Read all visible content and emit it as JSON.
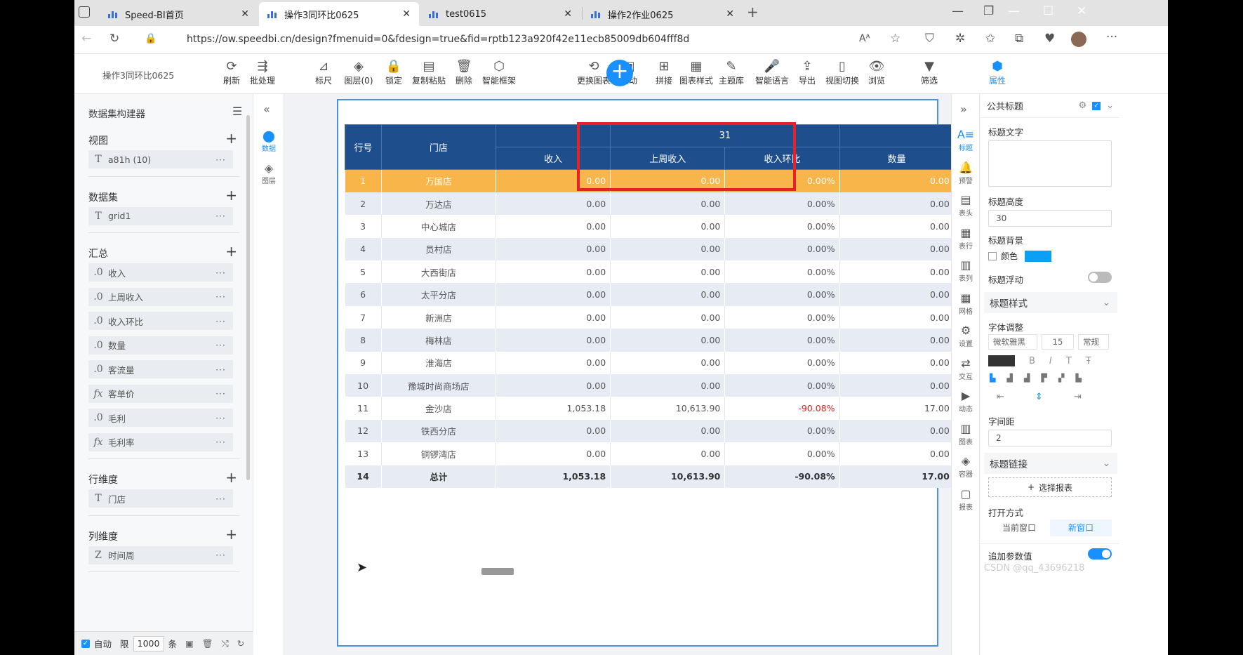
{
  "browser": {
    "tabs": [
      {
        "title": "Speed-BI首页"
      },
      {
        "title": "操作3同环比0625"
      },
      {
        "title": "test0615"
      },
      {
        "title": "操作2作业0625"
      }
    ],
    "url": "https://ow.speedbi.cn/design?fmenuid=0&fdesign=true&fid=rptb123a920f42e11ecb85009db604fff8d"
  },
  "app": {
    "report_title": "操作3同环比0625",
    "toolbar": [
      {
        "label": "刷新",
        "icon": "refresh-icon"
      },
      {
        "label": "批处理",
        "icon": "batch-icon"
      },
      {
        "label": "标尺",
        "icon": "ruler-icon"
      },
      {
        "label": "图层(0)",
        "icon": "layers-icon"
      },
      {
        "label": "锁定",
        "icon": "lock-icon"
      },
      {
        "label": "复制粘贴",
        "icon": "copy-icon"
      },
      {
        "label": "删除",
        "icon": "trash-icon"
      },
      {
        "label": "智能框架",
        "icon": "smart-frame-icon"
      },
      {
        "label": "更换图表",
        "icon": "change-chart-icon"
      },
      {
        "label": "联动",
        "icon": "link-icon"
      },
      {
        "label": "拼接",
        "icon": "splice-icon"
      },
      {
        "label": "图表样式",
        "icon": "chart-style-icon"
      },
      {
        "label": "主题库",
        "icon": "theme-icon"
      },
      {
        "label": "智能语言",
        "icon": "mic-icon"
      },
      {
        "label": "导出",
        "icon": "export-icon"
      },
      {
        "label": "视图切换",
        "icon": "view-switch-icon"
      },
      {
        "label": "浏览",
        "icon": "eye-icon"
      },
      {
        "label": "筛选",
        "icon": "filter-icon"
      },
      {
        "label": "属性",
        "icon": "property-icon"
      }
    ]
  },
  "left_panel": {
    "title": "数据集构建器",
    "sections": [
      {
        "title": "视图",
        "items": [
          {
            "type": "T",
            "name": "a81h (10)"
          }
        ]
      },
      {
        "title": "数据集",
        "items": [
          {
            "type": "T",
            "name": "grid1"
          }
        ]
      },
      {
        "title": "汇总",
        "items": [
          {
            "type": ".0",
            "name": "收入"
          },
          {
            "type": ".0",
            "name": "上周收入"
          },
          {
            "type": ".0",
            "name": "收入环比"
          },
          {
            "type": ".0",
            "name": "数量"
          },
          {
            "type": ".0",
            "name": "客流量"
          },
          {
            "type": "fx",
            "name": "客单价"
          },
          {
            "type": ".0",
            "name": "毛利"
          },
          {
            "type": "fx",
            "name": "毛利率"
          }
        ]
      },
      {
        "title": "行维度",
        "items": [
          {
            "type": "T",
            "name": "门店"
          }
        ]
      },
      {
        "title": "列维度",
        "items": [
          {
            "type": "Z",
            "name": "时间周"
          }
        ]
      }
    ],
    "more_label": "···",
    "footer": {
      "auto_label": "自动",
      "limit_label": "限",
      "limit_value": "1000",
      "unit_label": "条"
    }
  },
  "rail": {
    "data_label": "数据",
    "layer_label": "图层"
  },
  "table": {
    "header_row_no": "行号",
    "header_store": "门店",
    "group_header": "31",
    "columns": [
      "收入",
      "上周收入",
      "收入环比",
      "数量"
    ],
    "rows": [
      [
        "1",
        "万国店",
        "0.00",
        "0.00",
        "0.00%",
        "0.00"
      ],
      [
        "2",
        "万达店",
        "0.00",
        "0.00",
        "0.00%",
        "0.00"
      ],
      [
        "3",
        "中心城店",
        "0.00",
        "0.00",
        "0.00%",
        "0.00"
      ],
      [
        "4",
        "员村店",
        "0.00",
        "0.00",
        "0.00%",
        "0.00"
      ],
      [
        "5",
        "大西街店",
        "0.00",
        "0.00",
        "0.00%",
        "0.00"
      ],
      [
        "6",
        "太平分店",
        "0.00",
        "0.00",
        "0.00%",
        "0.00"
      ],
      [
        "7",
        "新洲店",
        "0.00",
        "0.00",
        "0.00%",
        "0.00"
      ],
      [
        "8",
        "梅林店",
        "0.00",
        "0.00",
        "0.00%",
        "0.00"
      ],
      [
        "9",
        "淮海店",
        "0.00",
        "0.00",
        "0.00%",
        "0.00"
      ],
      [
        "10",
        "豫城时尚商场店",
        "0.00",
        "0.00",
        "0.00%",
        "0.00"
      ],
      [
        "11",
        "金沙店",
        "1,053.18",
        "10,613.90",
        "-90.08%",
        "17.00"
      ],
      [
        "12",
        "铁西分店",
        "0.00",
        "0.00",
        "0.00%",
        "0.00"
      ],
      [
        "13",
        "铜锣湾店",
        "0.00",
        "0.00",
        "0.00%",
        "0.00"
      ],
      [
        "14",
        "总计",
        "1,053.18",
        "10,613.90",
        "-90.08%",
        "17.00"
      ]
    ]
  },
  "right_rail": [
    "标题",
    "预警",
    "表头",
    "表行",
    "表列",
    "网格",
    "设置",
    "交互",
    "动态",
    "图表",
    "容器",
    "报表"
  ],
  "props": {
    "header": "公共标题",
    "title_text_label": "标题文字",
    "title_text_value": "",
    "title_height_label": "标题高度",
    "title_height_value": "30",
    "title_bg_label": "标题背景",
    "color_label": "颜色",
    "title_bg_color": "#0aa1f5",
    "float_label": "标题浮动",
    "float_on": false,
    "style_section": "标题样式",
    "font_adjust_label": "字体调整",
    "font_family": "微软雅黑",
    "font_size": "15",
    "font_weight": "常规",
    "spacing_label": "字间距",
    "spacing_value": "2",
    "link_section": "标题链接",
    "select_report_label": "选择报表",
    "open_mode_label": "打开方式",
    "open_current": "当前窗口",
    "open_new": "新窗口",
    "append_param_label": "追加参数值",
    "append_param_on": true
  },
  "watermark": "CSDN @qq_43696218",
  "colors": {
    "accent": "#1890ff",
    "header": "#1f4e8c",
    "highlight": "#f7b54a",
    "negative": "#e02020",
    "frame": "#e8202a"
  }
}
